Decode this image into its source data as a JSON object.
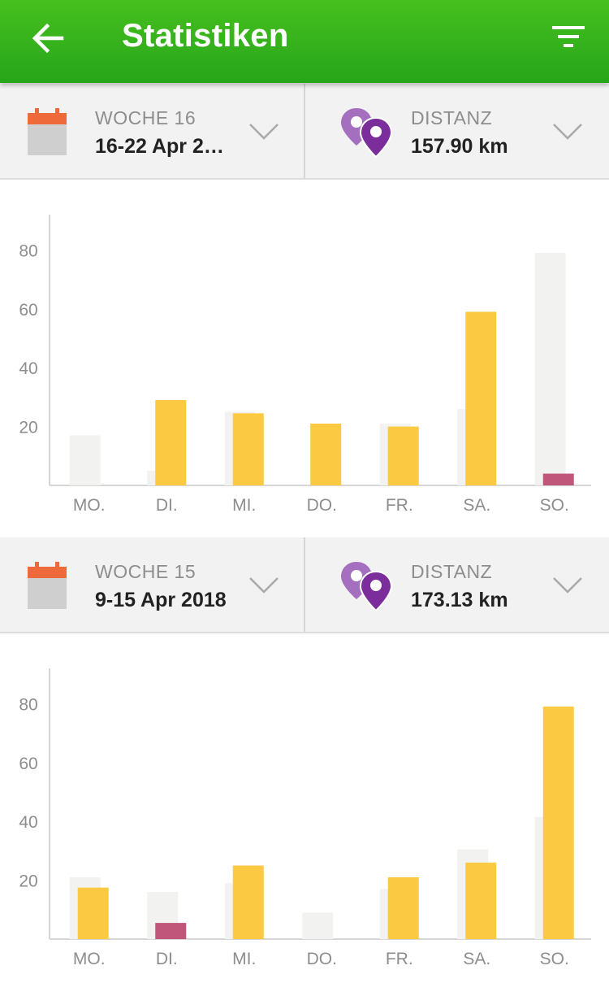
{
  "header": {
    "title": "Statistiken",
    "back_icon": "arrow-left-icon",
    "filter_icon": "filter-icon"
  },
  "colors": {
    "header_green": "#2fb21c",
    "current_bar": "#fbc942",
    "previous_bar": "#f2f2f0",
    "other_activity_bar": "#c0567a",
    "pin_purple": "#7b2d9c"
  },
  "weeks": [
    {
      "week_label": "WOCHE 16",
      "date_range": "16-22 Apr 2…",
      "metric_label": "DISTANZ",
      "metric_value": "157.90 km"
    },
    {
      "week_label": "WOCHE 15",
      "date_range": "9-15 Apr 2018",
      "metric_label": "DISTANZ",
      "metric_value": "173.13 km"
    }
  ],
  "chart_data": [
    {
      "type": "bar",
      "categories": [
        "MO.",
        "DI.",
        "MI.",
        "DO.",
        "FR.",
        "SA.",
        "SO."
      ],
      "yticks": [
        20,
        40,
        60,
        80
      ],
      "ylim": [
        0,
        92
      ],
      "series": [
        {
          "values": [
            17,
            5,
            25,
            0,
            21,
            26,
            79
          ]
        },
        {
          "values": [
            0,
            29,
            24.5,
            21,
            20,
            59,
            0
          ]
        },
        {
          "values": [
            0,
            0,
            0,
            0,
            0,
            0,
            4
          ]
        }
      ]
    },
    {
      "type": "bar",
      "categories": [
        "MO.",
        "DI.",
        "MI.",
        "DO.",
        "FR.",
        "SA.",
        "SO."
      ],
      "yticks": [
        20,
        40,
        60,
        80
      ],
      "ylim": [
        0,
        92
      ],
      "series": [
        {
          "values": [
            21,
            16,
            19,
            9,
            17,
            30.5,
            41.5
          ]
        },
        {
          "values": [
            17.5,
            0,
            25,
            0,
            21,
            26,
            79
          ]
        },
        {
          "values": [
            0,
            5.5,
            0,
            0,
            0,
            0,
            0
          ]
        }
      ]
    }
  ]
}
